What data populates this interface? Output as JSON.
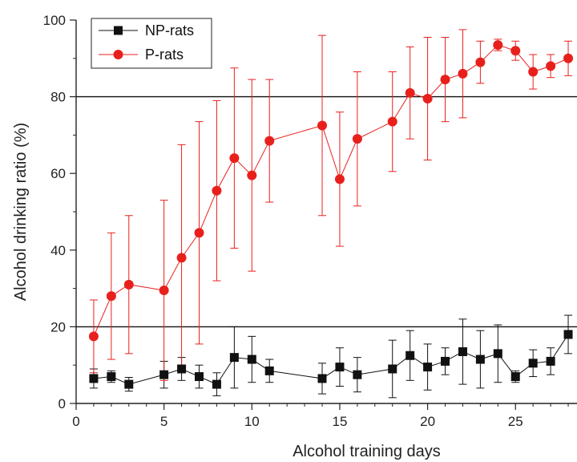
{
  "chart_data": {
    "type": "line",
    "title": "",
    "xlabel": "Alcohol training days",
    "ylabel": "Alcohol drinking ratio (%)",
    "xlim": [
      0,
      28.5
    ],
    "ylim": [
      0,
      100
    ],
    "x_ticks": [
      "0",
      "5",
      "10",
      "15",
      "20",
      "25"
    ],
    "y_ticks": [
      "0",
      "20",
      "40",
      "60",
      "80",
      "100"
    ],
    "x_tick_values": [
      0,
      5,
      10,
      15,
      20,
      25
    ],
    "y_tick_values": [
      0,
      20,
      40,
      60,
      80,
      100
    ],
    "reference_lines": [
      20,
      80
    ],
    "grid": false,
    "legend_position": "top-left",
    "series": [
      {
        "name": "NP-rats",
        "color": "#111111",
        "marker": "square",
        "x": [
          1,
          2,
          3,
          5,
          6,
          7,
          8,
          9,
          10,
          11,
          14,
          15,
          16,
          18,
          19,
          20,
          21,
          22,
          23,
          24,
          25,
          26,
          27,
          28
        ],
        "y": [
          6.5,
          7,
          5,
          7.5,
          9,
          7,
          5,
          12,
          11.5,
          8.5,
          6.5,
          9.5,
          7.5,
          9,
          12.5,
          9.5,
          11,
          13.5,
          11.5,
          13,
          7,
          10.5,
          11,
          18
        ],
        "err": [
          2.5,
          1.5,
          1.8,
          3.5,
          3,
          3,
          3,
          8,
          6,
          3,
          4,
          5,
          4.5,
          7.5,
          6.5,
          6,
          3.5,
          8.5,
          7.5,
          7.5,
          1.5,
          3.5,
          3.5,
          5
        ]
      },
      {
        "name": "P-rats",
        "color": "#e8201c",
        "marker": "circle",
        "x": [
          1,
          2,
          3,
          5,
          6,
          7,
          8,
          9,
          10,
          11,
          14,
          15,
          16,
          18,
          19,
          20,
          21,
          22,
          23,
          24,
          25,
          26,
          27,
          28
        ],
        "y": [
          17.5,
          28,
          31,
          29.5,
          38,
          44.5,
          55.5,
          64,
          59.5,
          68.5,
          72.5,
          58.5,
          69,
          73.5,
          81,
          79.5,
          84.5,
          86,
          89,
          93.5,
          92,
          86.5,
          88,
          90
        ],
        "err": [
          9.5,
          16.5,
          18,
          23.5,
          29.5,
          29,
          23.5,
          23.5,
          25,
          16,
          23.5,
          17.5,
          17.5,
          13,
          12,
          16,
          11,
          11.5,
          5.5,
          1.5,
          2.5,
          4.5,
          3,
          4.5
        ]
      }
    ]
  }
}
